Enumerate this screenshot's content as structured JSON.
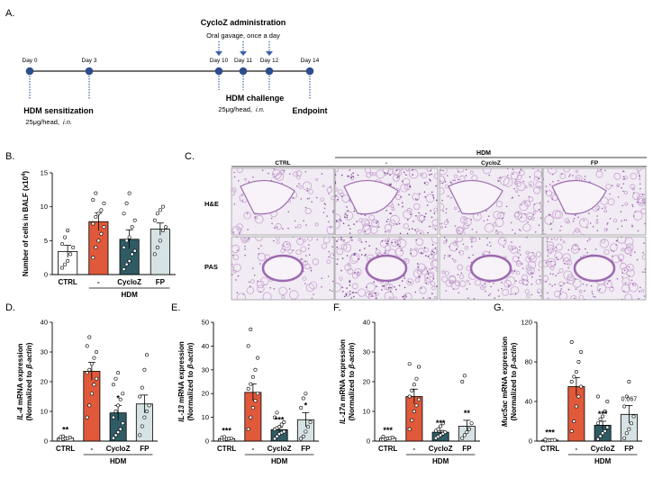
{
  "panel_labels": {
    "a": "A.",
    "b": "B.",
    "c": "C.",
    "d": "D.",
    "e": "E.",
    "f": "F.",
    "g": "G."
  },
  "timeline": {
    "days": [
      "Day 0",
      "Day 3",
      "Day 10",
      "Day 11",
      "Day 12",
      "Day 14"
    ],
    "sensitization_title": "HDM sensitization",
    "sensitization_dose": "25μg/head,",
    "sensitization_route": "i.n.",
    "admin_title": "CycloZ administration",
    "admin_detail": "Oral gavage, once a day",
    "challenge_title": "HDM challenge",
    "challenge_dose": "25μg/head,",
    "challenge_route": "i.n.",
    "endpoint": "Endpoint"
  },
  "histology": {
    "hdm_header": "HDM",
    "columns": [
      "CTRL",
      "-",
      "CycloZ",
      "FP"
    ],
    "rows": [
      "H&E",
      "PAS"
    ],
    "colors": {
      "bg": "#f1ebf3",
      "tissue": "#c9a6d2",
      "dense": "#9d69b0",
      "cell": "#7c4a93"
    }
  },
  "group_colors": {
    "CTRL": "#ffffff",
    "-": "#e0593a",
    "CycloZ": "#2f5b64",
    "FP": "#d6e3e4"
  },
  "chart_data": [
    {
      "id": "B",
      "type": "bar",
      "ylabel_main": "Number of cells in BALF (x10",
      "ylabel_sup": "4",
      "ylabel_end": ")",
      "categories": [
        "CTRL",
        "-",
        "CycloZ",
        "FP"
      ],
      "group_label": "HDM",
      "values": [
        3.4,
        7.8,
        5.2,
        6.7
      ],
      "errors": [
        0.9,
        1.3,
        1.4,
        0.9
      ],
      "ylim": [
        0,
        15
      ],
      "yticks": [
        0,
        5,
        10,
        15
      ],
      "significance": [
        "",
        "",
        "",
        ""
      ],
      "points": [
        [
          1.0,
          1.5,
          2.0,
          3.0,
          4.0,
          4.5,
          5.5,
          6.5
        ],
        [
          2.5,
          4.0,
          5.0,
          6.0,
          7.0,
          7.5,
          8.5,
          9.0,
          9.5,
          10.5,
          11.0,
          12.0
        ],
        [
          0.8,
          1.5,
          2.0,
          3.0,
          3.5,
          4.0,
          5.0,
          5.5,
          7.0,
          8.0,
          9.0,
          10.5,
          12.0
        ],
        [
          3.0,
          4.0,
          5.0,
          6.5,
          7.0,
          8.0,
          9.0,
          9.5,
          10.0
        ]
      ]
    },
    {
      "id": "D",
      "type": "bar",
      "ylabel_gene": "IL-4",
      "ylabel_rest": " mRNA expression",
      "ylabel_line2": "(Normalized to ",
      "ylabel_ref": "β-actin",
      "ylabel_close": ")",
      "categories": [
        "CTRL",
        "-",
        "CycloZ",
        "FP"
      ],
      "group_label": "HDM",
      "values": [
        1.0,
        23.5,
        9.5,
        12.5
      ],
      "errors": [
        0.3,
        3.0,
        2.5,
        3.0
      ],
      "ylim": [
        0,
        40
      ],
      "yticks": [
        0,
        10,
        20,
        30,
        40
      ],
      "significance": [
        "**",
        "",
        "*",
        ""
      ],
      "points": [
        [
          0.5,
          0.7,
          0.8,
          1.0,
          1.2,
          1.4,
          1.6
        ],
        [
          8,
          12,
          16,
          19,
          21,
          23,
          24,
          26,
          28,
          30,
          32,
          35
        ],
        [
          1,
          2,
          3,
          4,
          6,
          8,
          10,
          12,
          14,
          16,
          19,
          21,
          23
        ],
        [
          2,
          5,
          8,
          10,
          12,
          15,
          18,
          24,
          29
        ]
      ]
    },
    {
      "id": "E",
      "type": "bar",
      "ylabel_gene": "IL-13",
      "ylabel_rest": " mRNA expression",
      "ylabel_line2": "(Normalized to ",
      "ylabel_ref": "β-actin",
      "ylabel_close": ")",
      "categories": [
        "CTRL",
        "-",
        "CycloZ",
        "FP"
      ],
      "group_label": "HDM",
      "values": [
        1.0,
        20.5,
        4.8,
        9.0
      ],
      "errors": [
        0.3,
        3.5,
        1.0,
        3.0
      ],
      "ylim": [
        0,
        50
      ],
      "yticks": [
        0,
        10,
        20,
        30,
        40,
        50
      ],
      "significance": [
        "***",
        "",
        "***",
        "*"
      ],
      "points": [
        [
          0.5,
          0.7,
          0.9,
          1.0,
          1.2,
          1.4,
          1.7
        ],
        [
          5,
          10,
          14,
          17,
          20,
          22,
          24,
          27,
          30,
          35,
          40,
          47
        ],
        [
          1,
          2,
          3,
          3.5,
          4,
          5,
          5.5,
          6,
          7,
          8,
          10,
          12
        ],
        [
          1,
          2,
          4,
          6,
          8,
          14,
          18,
          20
        ]
      ]
    },
    {
      "id": "F",
      "type": "bar",
      "ylabel_gene": "IL-17a",
      "ylabel_rest": " mRNA expression",
      "ylabel_line2": "(Normalized to ",
      "ylabel_ref": "β-actin",
      "ylabel_close": ")",
      "categories": [
        "CTRL",
        "-",
        "CycloZ",
        "FP"
      ],
      "group_label": "HDM",
      "values": [
        1.0,
        15.0,
        3.0,
        5.0
      ],
      "errors": [
        0.2,
        2.5,
        0.6,
        2.0
      ],
      "ylim": [
        0,
        40
      ],
      "yticks": [
        0,
        10,
        20,
        30,
        40
      ],
      "significance": [
        "***",
        "",
        "***",
        "**"
      ],
      "points": [
        [
          0.5,
          0.7,
          0.9,
          1.0,
          1.2,
          1.5
        ],
        [
          4,
          7,
          10,
          12,
          14,
          15,
          17,
          19,
          21,
          25,
          26
        ],
        [
          1,
          1.5,
          2,
          2.5,
          3,
          3.5,
          4,
          5,
          6
        ],
        [
          1,
          2,
          3,
          4,
          6,
          20,
          22
        ]
      ]
    },
    {
      "id": "G",
      "type": "bar",
      "ylabel_gene": "Muc5ac",
      "ylabel_rest": " mRNA expression",
      "ylabel_line2": "(Normalized to ",
      "ylabel_ref": "β-actin",
      "ylabel_close": ")",
      "categories": [
        "CTRL",
        "-",
        "CycloZ",
        "FP"
      ],
      "group_label": "HDM",
      "values": [
        1.0,
        55.0,
        16.0,
        27.0
      ],
      "errors": [
        0.3,
        9.0,
        4.0,
        9.0
      ],
      "ylim": [
        0,
        120
      ],
      "yticks": [
        0,
        40,
        80,
        120
      ],
      "significance": [
        "***",
        "",
        "***",
        "0.067"
      ],
      "points": [
        [
          0.5,
          0.7,
          0.9,
          1.1,
          1.3,
          1.6
        ],
        [
          10,
          20,
          35,
          45,
          55,
          60,
          65,
          70,
          80,
          90,
          100
        ],
        [
          2,
          5,
          8,
          10,
          14,
          18,
          22,
          25,
          30,
          40,
          45
        ],
        [
          3,
          8,
          12,
          18,
          25,
          35,
          45,
          60
        ]
      ]
    }
  ]
}
